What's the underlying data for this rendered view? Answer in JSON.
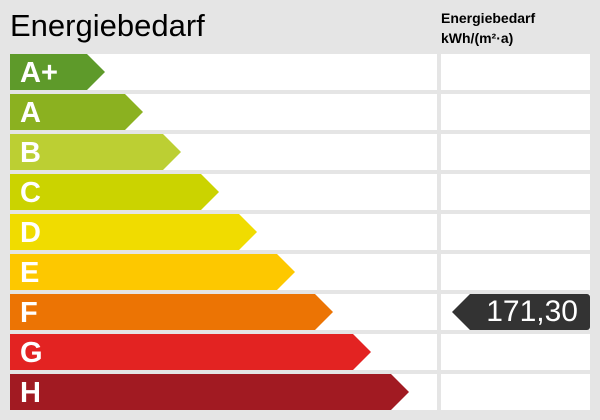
{
  "title": "Energiebedarf",
  "column_header": {
    "line1": "Energiebedarf",
    "line2": "kWh/(m²·a)"
  },
  "chart_data": {
    "type": "bar",
    "title": "Energiebedarf",
    "categories": [
      "A+",
      "A",
      "B",
      "C",
      "D",
      "E",
      "F",
      "G",
      "H"
    ],
    "colors": [
      "#5e9a2a",
      "#8bb120",
      "#bccf33",
      "#cbd300",
      "#f0dc00",
      "#fdc800",
      "#ec7404",
      "#e32322",
      "#a11a22"
    ],
    "indicator": {
      "class": "F",
      "value": "171,30",
      "color": "#333333"
    }
  }
}
